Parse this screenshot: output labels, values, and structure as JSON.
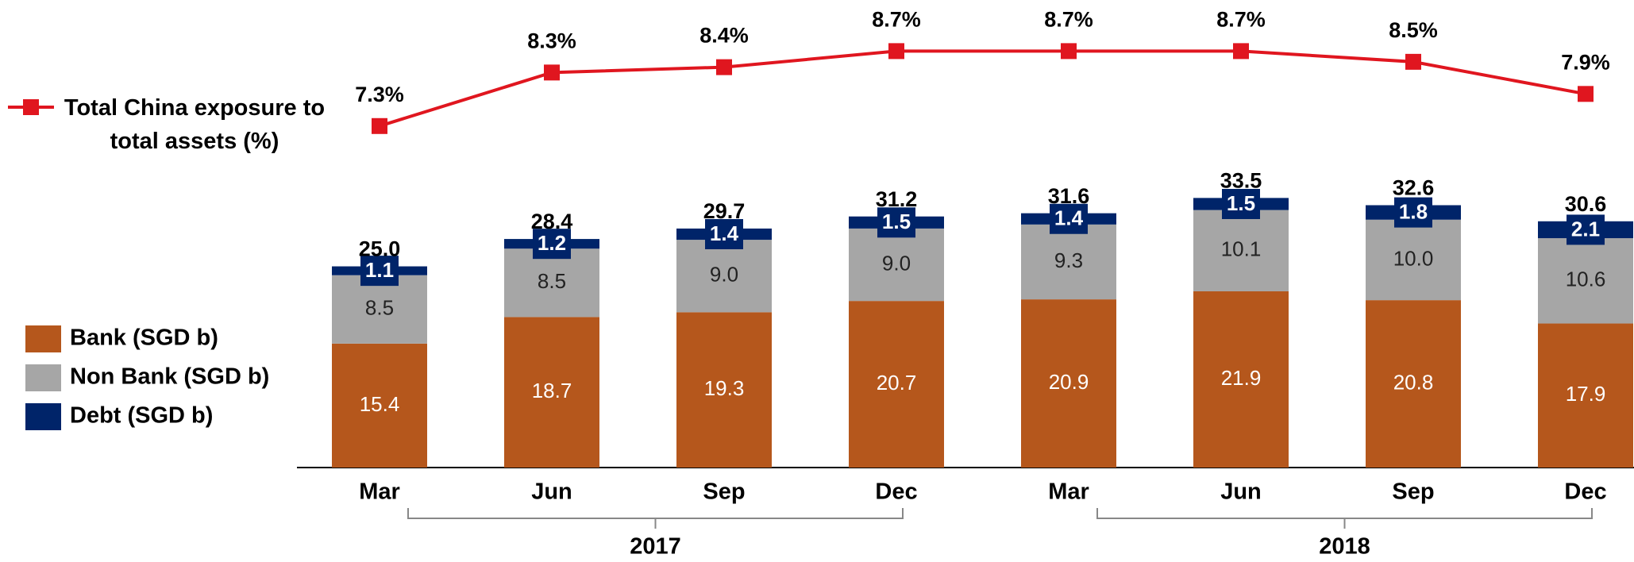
{
  "chart_data": {
    "type": "bar",
    "stacked": true,
    "categories": [
      "Mar",
      "Jun",
      "Sep",
      "Dec",
      "Mar",
      "Jun",
      "Sep",
      "Dec"
    ],
    "groups": [
      "2017",
      "2018"
    ],
    "ylim": [
      0,
      58
    ],
    "y2lim": [
      0.92,
      9.64
    ],
    "series": [
      {
        "name": "Bank (SGD b)",
        "color": "#b5571c",
        "values": [
          15.4,
          18.7,
          19.3,
          20.7,
          20.9,
          21.9,
          20.8,
          17.9
        ]
      },
      {
        "name": "Non Bank (SGD b)",
        "color": "#a6a6a6",
        "values": [
          8.5,
          8.5,
          9.0,
          9.0,
          9.3,
          10.1,
          10.0,
          10.6
        ],
        "value_labels": [
          "8.5",
          "8.5",
          "9.0",
          "9.0",
          "9.3",
          "10.1",
          "10.0",
          "10.6"
        ]
      },
      {
        "name": "Debt (SGD b)",
        "color": "#002469",
        "values": [
          1.1,
          1.2,
          1.4,
          1.5,
          1.4,
          1.5,
          1.8,
          2.1
        ]
      },
      {
        "name": "Total China exposure to total assets (%)",
        "type": "line",
        "axis": "y2",
        "color": "#e0161f",
        "values": [
          7.3,
          8.3,
          8.4,
          8.7,
          8.7,
          8.7,
          8.5,
          7.9
        ],
        "value_labels": [
          "7.3%",
          "8.3%",
          "8.4%",
          "8.7%",
          "8.7%",
          "8.7%",
          "8.5%",
          "7.9%"
        ]
      }
    ],
    "totals": {
      "values": [
        25.0,
        28.4,
        29.7,
        31.2,
        31.6,
        33.5,
        32.6,
        30.6
      ],
      "value_labels": [
        "25.0",
        "28.4",
        "29.7",
        "31.2",
        "31.6",
        "33.5",
        "32.6",
        "30.6"
      ]
    }
  }
}
